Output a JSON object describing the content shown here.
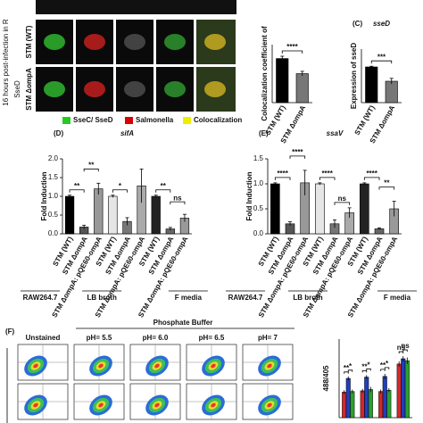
{
  "figure": {
    "micro": {
      "side_label": "16 hours post-infection in R",
      "group_label": "SseD",
      "rows": [
        "STM (WT)",
        "STM ΔompA"
      ],
      "legend": [
        "SseC/ SseD",
        "Salmonella",
        "Colocalization"
      ]
    },
    "coloc": {
      "ylabel": "Colocalization coefficient of",
      "categories": [
        "STM (WT)",
        "STM ΔompA"
      ],
      "values": [
        0.38,
        0.25
      ],
      "errors": [
        0.02,
        0.02
      ],
      "colors": [
        "#000000",
        "#777777"
      ],
      "ylim": [
        0,
        0.5
      ],
      "sig": [
        "****"
      ]
    },
    "sseD": {
      "label": "(C)",
      "title": "sseD",
      "ylabel": "Expression of sseD",
      "categories": [
        "STM (WT)",
        "STM ΔompA"
      ],
      "values": [
        1.0,
        0.6
      ],
      "errors": [
        0.02,
        0.08
      ],
      "colors": [
        "#000000",
        "#777777"
      ],
      "ylim": [
        0,
        1.5
      ],
      "sig": [
        "***"
      ]
    },
    "sifA": {
      "label": "(D)",
      "title": "sifA",
      "ylabel": "Fold Induction",
      "categories": [
        "STM (WT)",
        "STM ΔompA",
        "STM ΔompA: pQE60-ompA",
        "STM (WT)",
        "STM ΔompA",
        "STM ΔompA: pQE60-ompA",
        "STM (WT)",
        "STM ΔompA",
        "STM ΔompA: pQE60-ompA"
      ],
      "values": [
        1.0,
        0.18,
        1.2,
        1.0,
        0.33,
        1.28,
        1.0,
        0.13,
        0.42
      ],
      "errors": [
        0.03,
        0.05,
        0.15,
        0.03,
        0.1,
        0.45,
        0.03,
        0.04,
        0.1
      ],
      "colors": [
        "#000000",
        "#555555",
        "#999999",
        "#e6e6e6",
        "#777777",
        "#aaaaaa",
        "#222222",
        "#666666",
        "#999999"
      ],
      "ylim": [
        0,
        2
      ],
      "yticks": [
        {
          "value": 0,
          "label": "0.0"
        },
        0.5,
        {
          "value": 1,
          "label": "1.0"
        },
        1.5,
        {
          "value": 2,
          "label": "2.0"
        }
      ],
      "sig": [
        "**",
        "**",
        "*",
        "**",
        "ns"
      ]
    },
    "ssaV": {
      "label": "(E)",
      "title": "ssaV",
      "ylabel": "Fold Induction",
      "categories": [
        "STM (WT)",
        "STM ΔompA",
        "STM ΔompA: pQE60-ompA",
        "STM (WT)",
        "STM ΔompA",
        "STM ΔompA: pQE60-ompA",
        "STM (WT)",
        "STM ΔompA",
        "STM ΔompA: pQE60-ompA"
      ],
      "values": [
        1.0,
        0.2,
        1.02,
        1.0,
        0.2,
        0.42,
        1.0,
        0.1,
        0.5
      ],
      "errors": [
        0.02,
        0.04,
        0.25,
        0.02,
        0.08,
        0.1,
        0.02,
        0.02,
        0.15
      ],
      "colors": [
        "#000000",
        "#555555",
        "#999999",
        "#e6e6e6",
        "#777777",
        "#aaaaaa",
        "#222222",
        "#666666",
        "#999999"
      ],
      "ylim": [
        0,
        1.5
      ],
      "yticks": [
        {
          "value": 0,
          "label": "0.0"
        },
        0.5,
        {
          "value": 1,
          "label": "1.0"
        },
        1.5
      ],
      "sig": [
        "****",
        "****",
        "****",
        "ns",
        "****",
        "**"
      ]
    },
    "groups": [
      "RAW264.7",
      "LB broth",
      "F media"
    ],
    "flow": {
      "label": "(F)",
      "title": "Phosphate Buffer",
      "columns": [
        "Unstained",
        "pH= 5.5",
        "pH= 6.0",
        "pH= 6.5",
        "pH= 7"
      ]
    },
    "mfi": {
      "ylabel": "488/405",
      "ylim": [
        0,
        12
      ],
      "series": [
        {
          "color": "#d62728",
          "values": [
            3.9,
            4.1,
            4.0,
            8.2
          ],
          "errors": [
            0.3,
            0.3,
            0.3,
            0.4
          ]
        },
        {
          "color": "#1f3fbf",
          "values": [
            6.0,
            6.2,
            6.3,
            9.0
          ],
          "errors": [
            0.3,
            0.3,
            0.4,
            0.4
          ]
        },
        {
          "color": "#2ca02c",
          "values": [
            4.0,
            4.3,
            4.2,
            8.7
          ],
          "errors": [
            0.3,
            0.4,
            0.3,
            0.5
          ]
        }
      ],
      "sig": [
        "**",
        "*",
        "**",
        "*",
        "**",
        "*",
        "ns",
        "ns"
      ]
    }
  }
}
